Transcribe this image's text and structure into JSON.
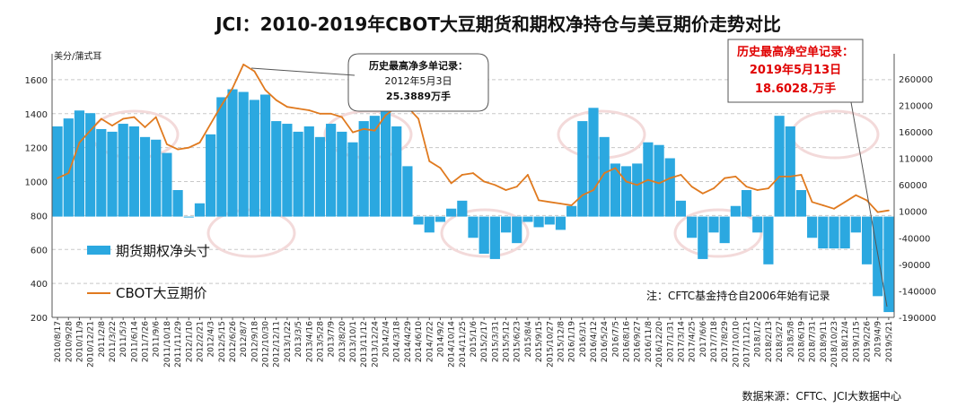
{
  "chart_data": {
    "type": "bar+line",
    "title": "JCI：2010-2019年CBOT大豆期货和期权净持仓与美豆期价走势对比",
    "y_left_unit": "美分/蒲式耳",
    "y_left_range": [
      200,
      1700
    ],
    "y_left_ticks": [
      200,
      400,
      600,
      800,
      1000,
      1200,
      1400,
      1600
    ],
    "y_right_range": [
      -190000,
      290000
    ],
    "y_right_ticks": [
      -190000,
      -140000,
      -90000,
      -40000,
      10000,
      60000,
      110000,
      160000,
      210000,
      260000
    ],
    "x_tick_labels": [
      "2010/8/17",
      "2010/9/28",
      "2010/11/9",
      "2010/12/21",
      "2011/2/8",
      "2011/3/22",
      "2011/5/3",
      "2011/6/14",
      "2011/7/26",
      "2011/9/6",
      "2011/10/18",
      "2011/11/29",
      "2012/1/10",
      "2012/2/21",
      "2012/4/3",
      "2012/5/15",
      "2012/6/26",
      "2012/8/7",
      "2012/9/18",
      "2012/10/30",
      "2012/12/11",
      "2013/1/22",
      "2013/3/5",
      "2013/4/16",
      "2013/5/28",
      "2013/7/9",
      "2013/8/20",
      "2013/10/1",
      "2013/11/12",
      "2013/12/24",
      "2014/2/4",
      "2014/3/18",
      "2014/4/29",
      "2014/6/10",
      "2014/7/22",
      "2014/9/2",
      "2014/10/14",
      "2014/11/25",
      "2015/1/6",
      "2015/2/17",
      "2015/3/31",
      "2015/5/12",
      "2015/6/23",
      "2015/8/4",
      "2015/9/15",
      "2015/10/27",
      "2015/12/8",
      "2016/1/19",
      "2016/3/1",
      "2016/4/12",
      "2016/5/24",
      "2016/7/5",
      "2016/8/16",
      "2016/9/27",
      "2016/11/8",
      "2016/12/20",
      "2017/1/31",
      "2017/3/14",
      "2017/4/25",
      "2017/6/6",
      "2017/7/18",
      "2017/8/29",
      "2017/10/10",
      "2017/11/21",
      "2018/1/2",
      "2018/2/13",
      "2018/3/27",
      "2018/5/8",
      "2018/6/19",
      "2018/7/31",
      "2018/9/11",
      "2018/10/23",
      "2018/12/4",
      "2019/1/15",
      "2019/2/26",
      "2019/4/9",
      "2019/5/21"
    ],
    "series": [
      {
        "name": "期货期权净头寸",
        "type": "bar",
        "axis": "right",
        "color": "#2ba8e0",
        "values": [
          170000,
          185000,
          200000,
          195000,
          165000,
          160000,
          175000,
          170000,
          150000,
          145000,
          120000,
          50000,
          0,
          25000,
          155000,
          225000,
          240000,
          235000,
          220000,
          230000,
          180000,
          175000,
          160000,
          170000,
          150000,
          175000,
          160000,
          140000,
          180000,
          190000,
          205000,
          170000,
          95000,
          -15000,
          -30000,
          -10000,
          15000,
          30000,
          -40000,
          -70000,
          -80000,
          -30000,
          -50000,
          -10000,
          -20000,
          -15000,
          -25000,
          20000,
          180000,
          205000,
          150000,
          100000,
          95000,
          100000,
          140000,
          135000,
          110000,
          30000,
          -40000,
          -80000,
          -30000,
          -50000,
          20000,
          50000,
          -30000,
          -90000,
          190000,
          170000,
          50000,
          -40000,
          -60000,
          -60000,
          -60000,
          -30000,
          -90000,
          -150000,
          -180000
        ]
      },
      {
        "name": "CBOT大豆期价",
        "type": "line",
        "axis": "left",
        "color": "#e07a1f",
        "values": [
          1020,
          1050,
          1230,
          1300,
          1370,
          1330,
          1370,
          1380,
          1320,
          1380,
          1220,
          1190,
          1200,
          1230,
          1340,
          1450,
          1550,
          1690,
          1650,
          1540,
          1480,
          1440,
          1430,
          1420,
          1400,
          1400,
          1380,
          1290,
          1310,
          1300,
          1390,
          1440,
          1440,
          1370,
          1120,
          1080,
          990,
          1040,
          1050,
          1000,
          980,
          950,
          970,
          1040,
          890,
          880,
          870,
          860,
          920,
          950,
          1050,
          1080,
          1000,
          980,
          1010,
          990,
          1020,
          1040,
          970,
          930,
          960,
          1020,
          1030,
          970,
          950,
          960,
          1030,
          1030,
          1040,
          880,
          860,
          840,
          880,
          920,
          890,
          820,
          830
        ]
      }
    ],
    "legend": [
      "期货期权净头寸",
      "CBOT大豆期价"
    ],
    "legend_placement": "bottom-left",
    "annotations": {
      "max_long": {
        "title": "历史最高净多单记录：",
        "date": "2012年5月3日",
        "value": "25.3889万手"
      },
      "max_short": {
        "title": "历史最高净空单记录：",
        "date": "2019年5月13日",
        "value": "18.6028.万手"
      },
      "note": "注：CFTC基金持仓自2006年始有记录",
      "source": "数据来源：CFTC、JCI大数据中心"
    }
  }
}
